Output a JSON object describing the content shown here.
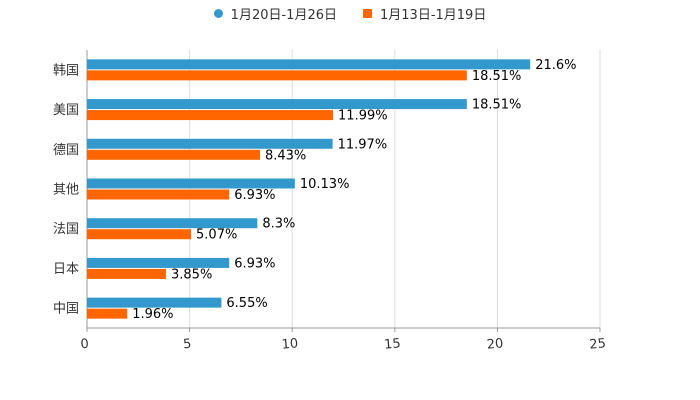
{
  "chart_data": {
    "type": "bar",
    "orientation": "horizontal",
    "categories": [
      "韩国",
      "美国",
      "德国",
      "其他",
      "法国",
      "日本",
      "中国"
    ],
    "series": [
      {
        "name": "1月20日-1月26日",
        "color": "#3399cc",
        "marker": "circle",
        "values": [
          21.6,
          18.51,
          11.97,
          10.13,
          8.3,
          6.93,
          6.55
        ],
        "labels": [
          "21.6%",
          "18.51%",
          "11.97%",
          "10.13%",
          "8.3%",
          "6.93%",
          "6.55%"
        ]
      },
      {
        "name": "1月13日-1月19日",
        "color": "#ff6600",
        "marker": "square",
        "values": [
          18.51,
          11.99,
          8.43,
          6.93,
          5.07,
          3.85,
          1.96
        ],
        "labels": [
          "18.51%",
          "11.99%",
          "8.43%",
          "6.93%",
          "5.07%",
          "3.85%",
          "1.96%"
        ]
      }
    ],
    "xlim": [
      0,
      25
    ],
    "xticks": [
      "0",
      "5",
      "10",
      "15",
      "20",
      "25"
    ],
    "grid": true,
    "legend_position": "top-center",
    "title": "",
    "xlabel": "",
    "ylabel": ""
  }
}
